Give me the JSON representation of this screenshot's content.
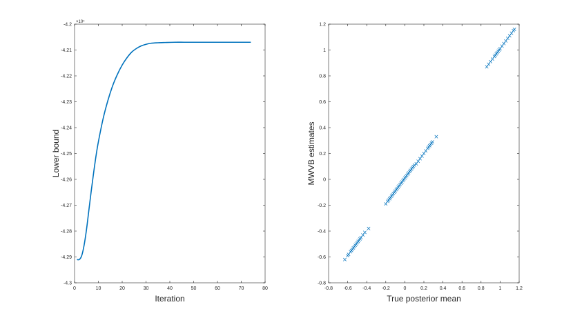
{
  "chart_data": [
    {
      "type": "line",
      "title": "",
      "xlabel": "Iteration",
      "ylabel": "Lower bound",
      "y_exponent": "×10⁴",
      "xlim": [
        0,
        80
      ],
      "ylim": [
        -4.3,
        -4.2
      ],
      "xticks": [
        0,
        10,
        20,
        30,
        40,
        50,
        60,
        70,
        80
      ],
      "yticks": [
        -4.3,
        -4.29,
        -4.28,
        -4.27,
        -4.26,
        -4.25,
        -4.24,
        -4.23,
        -4.22,
        -4.21,
        -4.2
      ],
      "xtick_labels": [
        "0",
        "10",
        "20",
        "30",
        "40",
        "50",
        "60",
        "70",
        "80"
      ],
      "ytick_labels": [
        "-4.3",
        "-4.29",
        "-4.28",
        "-4.27",
        "-4.26",
        "-4.25",
        "-4.24",
        "-4.23",
        "-4.22",
        "-4.21",
        "-4.2"
      ],
      "grid": false,
      "color": "#0072bd",
      "x": [
        1,
        2,
        3,
        4,
        5,
        6,
        7,
        8,
        9,
        10,
        12,
        14,
        16,
        18,
        20,
        22,
        24,
        26,
        28,
        30,
        32,
        35,
        38,
        42,
        46,
        50,
        55,
        60,
        65,
        70,
        74
      ],
      "y": [
        -4.291,
        -4.291,
        -4.2895,
        -4.2855,
        -4.2795,
        -4.272,
        -4.2645,
        -4.2575,
        -4.251,
        -4.2455,
        -4.2365,
        -4.2295,
        -4.2238,
        -4.2194,
        -4.2158,
        -4.213,
        -4.2108,
        -4.2094,
        -4.2084,
        -4.2078,
        -4.2074,
        -4.2072,
        -4.2071,
        -4.207,
        -4.207,
        -4.207,
        -4.207,
        -4.207,
        -4.207,
        -4.207,
        -4.207
      ]
    },
    {
      "type": "scatter",
      "title": "",
      "xlabel": "True posterior mean",
      "ylabel": "MWVB estimates",
      "xlim": [
        -0.8,
        1.2
      ],
      "ylim": [
        -0.8,
        1.2
      ],
      "xticks": [
        -0.8,
        -0.6,
        -0.4,
        -0.2,
        0,
        0.2,
        0.4,
        0.6,
        0.8,
        1,
        1.2
      ],
      "yticks": [
        -0.8,
        -0.6,
        -0.4,
        -0.2,
        0,
        0.2,
        0.4,
        0.6,
        0.8,
        1,
        1.2
      ],
      "xtick_labels": [
        "-0.8",
        "-0.6",
        "-0.4",
        "-0.2",
        "0",
        "0.2",
        "0.4",
        "0.6",
        "0.8",
        "1",
        "1.2"
      ],
      "ytick_labels": [
        "-0.8",
        "-0.6",
        "-0.4",
        "-0.2",
        "0",
        "0.2",
        "0.4",
        "0.6",
        "0.8",
        "1",
        "1.2"
      ],
      "grid": false,
      "marker": "x",
      "color": "#0072bd",
      "x": [
        -0.63,
        -0.6,
        -0.59,
        -0.57,
        -0.56,
        -0.55,
        -0.54,
        -0.53,
        -0.52,
        -0.51,
        -0.5,
        -0.49,
        -0.48,
        -0.47,
        -0.46,
        -0.44,
        -0.42,
        -0.38,
        -0.2,
        -0.18,
        -0.17,
        -0.16,
        -0.15,
        -0.14,
        -0.13,
        -0.12,
        -0.11,
        -0.1,
        -0.09,
        -0.08,
        -0.07,
        -0.06,
        -0.05,
        -0.04,
        -0.03,
        -0.02,
        -0.01,
        0,
        0.01,
        0.02,
        0.03,
        0.04,
        0.05,
        0.06,
        0.07,
        0.08,
        0.09,
        0.1,
        0.12,
        0.14,
        0.16,
        0.18,
        0.2,
        0.22,
        0.24,
        0.25,
        0.26,
        0.27,
        0.28,
        0.29,
        0.33,
        0.86,
        0.88,
        0.9,
        0.92,
        0.94,
        0.95,
        0.96,
        0.97,
        0.98,
        0.99,
        1.0,
        1.02,
        1.04,
        1.06,
        1.08,
        1.1,
        1.12,
        1.14,
        1.15
      ],
      "y": [
        -0.62,
        -0.59,
        -0.58,
        -0.56,
        -0.55,
        -0.54,
        -0.53,
        -0.52,
        -0.51,
        -0.5,
        -0.49,
        -0.48,
        -0.47,
        -0.46,
        -0.45,
        -0.43,
        -0.41,
        -0.38,
        -0.19,
        -0.17,
        -0.16,
        -0.15,
        -0.14,
        -0.13,
        -0.12,
        -0.11,
        -0.1,
        -0.09,
        -0.08,
        -0.07,
        -0.06,
        -0.05,
        -0.04,
        -0.03,
        -0.02,
        -0.01,
        0,
        0.01,
        0.02,
        0.03,
        0.04,
        0.05,
        0.06,
        0.07,
        0.08,
        0.09,
        0.1,
        0.11,
        0.12,
        0.14,
        0.16,
        0.18,
        0.2,
        0.22,
        0.24,
        0.25,
        0.26,
        0.27,
        0.28,
        0.29,
        0.33,
        0.87,
        0.89,
        0.91,
        0.93,
        0.95,
        0.96,
        0.97,
        0.98,
        0.99,
        1.0,
        1.01,
        1.03,
        1.05,
        1.07,
        1.09,
        1.11,
        1.13,
        1.15,
        1.16
      ]
    }
  ]
}
